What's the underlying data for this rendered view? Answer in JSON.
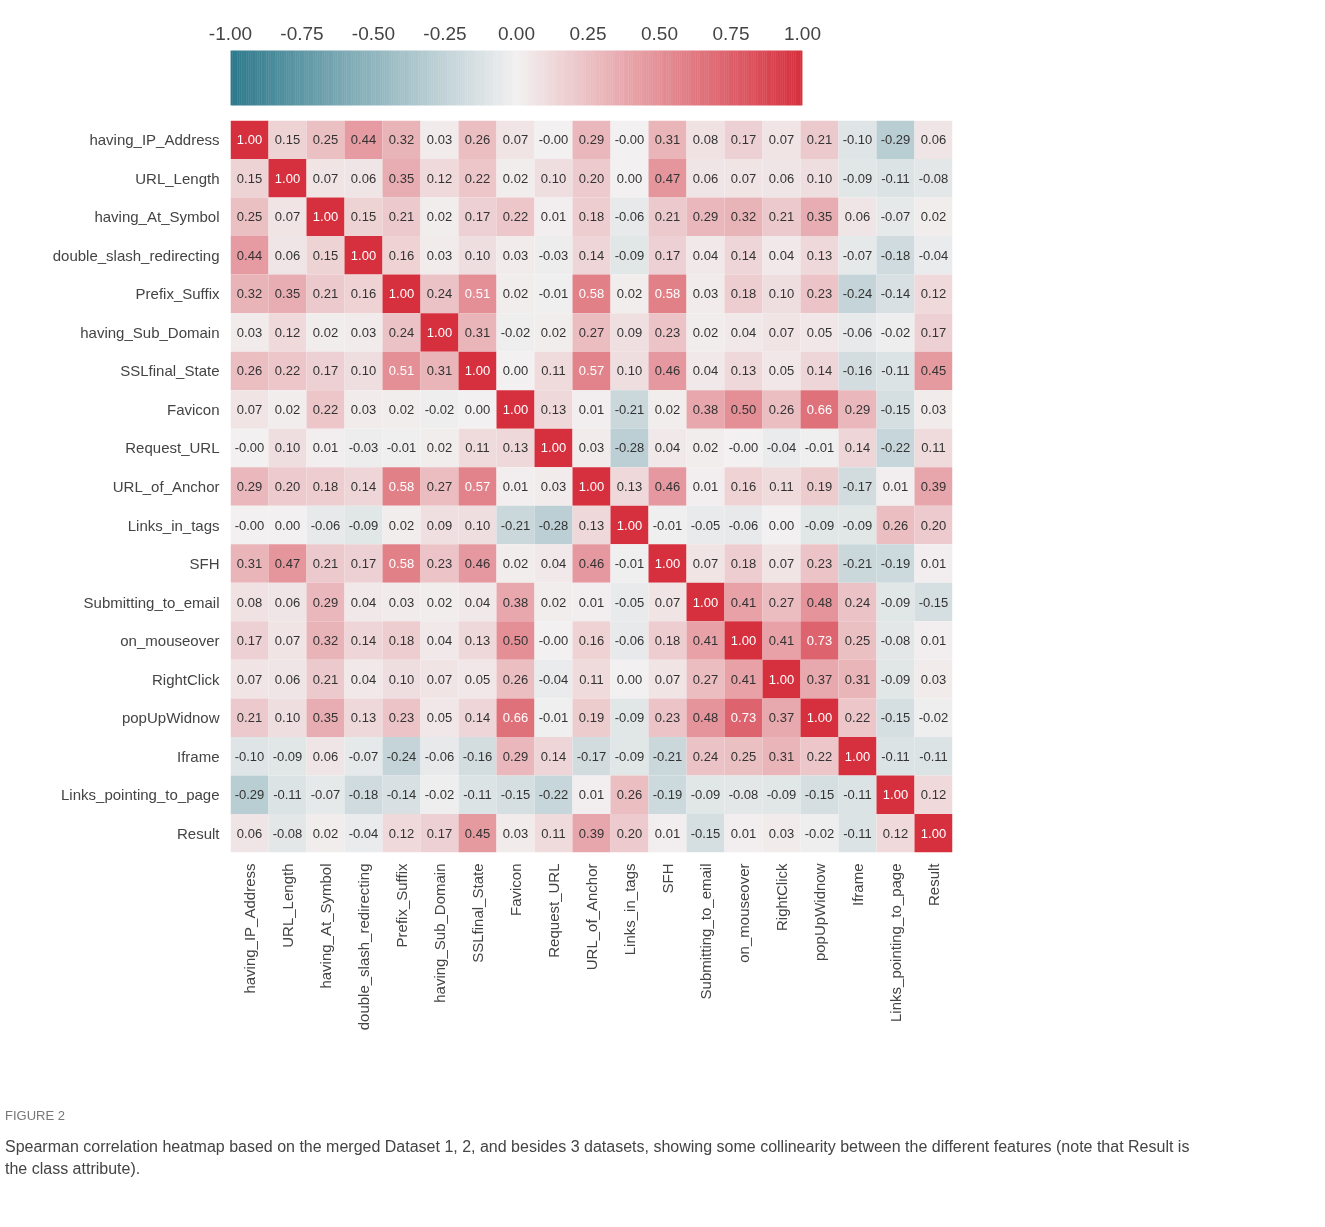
{
  "chart_data": {
    "type": "heatmap",
    "categories": [
      "having_IP_Address",
      "URL_Length",
      "having_At_Symbol",
      "double_slash_redirecting",
      "Prefix_Suffix",
      "having_Sub_Domain",
      "SSLfinal_State",
      "Favicon",
      "Request_URL",
      "URL_of_Anchor",
      "Links_in_tags",
      "SFH",
      "Submitting_to_email",
      "on_mouseover",
      "RightClick",
      "popUpWidnow",
      "Iframe",
      "Links_pointing_to_page",
      "Result"
    ],
    "y_categories": [
      "having_IP_Address",
      "URL_Length",
      "having_At_Symbol",
      "double_slash_redirecting",
      "Prefix_Suffix",
      "having_Sub_Domain",
      "SSLfinal_State",
      "Favicon",
      "Request_URL",
      "URL_of_Anchor",
      "Links_in_tags",
      "SFH",
      "Submitting_to_email",
      "on_mouseover",
      "RightClick",
      "popUpWidnow",
      "Iframe",
      "Links_pointing_to_page",
      "Result"
    ],
    "cells": [
      [
        1.0,
        0.15,
        0.25,
        0.44,
        0.32,
        0.03,
        0.26,
        0.07,
        -0.0,
        0.29,
        -0.0,
        0.31,
        0.08,
        0.17,
        0.07,
        0.21,
        -0.1,
        -0.29,
        0.06
      ],
      [
        0.15,
        1.0,
        0.07,
        0.06,
        0.35,
        0.12,
        0.22,
        0.02,
        0.1,
        0.2,
        0.0,
        0.47,
        0.06,
        0.07,
        0.06,
        0.1,
        -0.09,
        -0.11,
        -0.08
      ],
      [
        0.25,
        0.07,
        1.0,
        0.15,
        0.21,
        0.02,
        0.17,
        0.22,
        0.01,
        0.18,
        -0.06,
        0.21,
        0.29,
        0.32,
        0.21,
        0.35,
        0.06,
        -0.07,
        0.02
      ],
      [
        0.44,
        0.06,
        0.15,
        1.0,
        0.16,
        0.03,
        0.1,
        0.03,
        -0.03,
        0.14,
        -0.09,
        0.17,
        0.04,
        0.14,
        0.04,
        0.13,
        -0.07,
        -0.18,
        -0.04
      ],
      [
        0.32,
        0.35,
        0.21,
        0.16,
        1.0,
        0.24,
        0.51,
        0.02,
        -0.01,
        0.58,
        0.02,
        0.58,
        0.03,
        0.18,
        0.1,
        0.23,
        -0.24,
        -0.14,
        0.12
      ],
      [
        0.03,
        0.12,
        0.02,
        0.03,
        0.24,
        1.0,
        0.31,
        -0.02,
        0.02,
        0.27,
        0.09,
        0.23,
        0.02,
        0.04,
        0.07,
        0.05,
        -0.06,
        -0.02,
        0.17
      ],
      [
        0.26,
        0.22,
        0.17,
        0.1,
        0.51,
        0.31,
        1.0,
        0.0,
        0.11,
        0.57,
        0.1,
        0.46,
        0.04,
        0.13,
        0.05,
        0.14,
        -0.16,
        -0.11,
        0.45
      ],
      [
        0.07,
        0.02,
        0.22,
        0.03,
        0.02,
        -0.02,
        0.0,
        1.0,
        0.13,
        0.01,
        -0.21,
        0.02,
        0.38,
        0.5,
        0.26,
        0.66,
        0.29,
        -0.15,
        0.03
      ],
      [
        -0.0,
        0.1,
        0.01,
        -0.03,
        -0.01,
        0.02,
        0.11,
        0.13,
        1.0,
        0.03,
        -0.28,
        0.04,
        0.02,
        -0.0,
        -0.04,
        -0.01,
        0.14,
        -0.22,
        0.11
      ],
      [
        0.29,
        0.2,
        0.18,
        0.14,
        0.58,
        0.27,
        0.57,
        0.01,
        0.03,
        1.0,
        0.13,
        0.46,
        0.01,
        0.16,
        0.11,
        0.19,
        -0.17,
        0.01,
        0.39
      ],
      [
        -0.0,
        0.0,
        -0.06,
        -0.09,
        0.02,
        0.09,
        0.1,
        -0.21,
        -0.28,
        0.13,
        1.0,
        -0.01,
        -0.05,
        -0.06,
        0.0,
        -0.09,
        -0.09,
        0.26,
        0.2
      ],
      [
        0.31,
        0.47,
        0.21,
        0.17,
        0.58,
        0.23,
        0.46,
        0.02,
        0.04,
        0.46,
        -0.01,
        1.0,
        0.07,
        0.18,
        0.07,
        0.23,
        -0.21,
        -0.19,
        0.01
      ],
      [
        0.08,
        0.06,
        0.29,
        0.04,
        0.03,
        0.02,
        0.04,
        0.38,
        0.02,
        0.01,
        -0.05,
        0.07,
        1.0,
        0.41,
        0.27,
        0.48,
        0.24,
        -0.09,
        -0.15
      ],
      [
        0.17,
        0.07,
        0.32,
        0.14,
        0.18,
        0.04,
        0.13,
        0.5,
        -0.0,
        0.16,
        -0.06,
        0.18,
        0.41,
        1.0,
        0.41,
        0.73,
        0.25,
        -0.08,
        0.01
      ],
      [
        0.07,
        0.06,
        0.21,
        0.04,
        0.1,
        0.07,
        0.05,
        0.26,
        -0.04,
        0.11,
        0.0,
        0.07,
        0.27,
        0.41,
        1.0,
        0.37,
        0.31,
        -0.09,
        0.03
      ],
      [
        0.21,
        0.1,
        0.35,
        0.13,
        0.23,
        0.05,
        0.14,
        0.66,
        -0.01,
        0.19,
        -0.09,
        0.23,
        0.48,
        0.73,
        0.37,
        1.0,
        0.22,
        -0.15,
        -0.02
      ],
      [
        -0.1,
        -0.09,
        0.06,
        -0.07,
        -0.24,
        -0.06,
        -0.16,
        0.29,
        0.14,
        -0.17,
        -0.09,
        -0.21,
        0.24,
        0.25,
        0.31,
        0.22,
        1.0,
        -0.11,
        -0.11
      ],
      [
        -0.29,
        -0.11,
        -0.07,
        -0.18,
        -0.14,
        -0.02,
        -0.11,
        -0.15,
        -0.22,
        0.01,
        0.26,
        -0.19,
        -0.09,
        -0.08,
        -0.09,
        -0.15,
        -0.11,
        1.0,
        0.12
      ],
      [
        0.06,
        -0.08,
        0.02,
        -0.04,
        0.12,
        0.17,
        0.45,
        0.03,
        0.11,
        0.39,
        0.2,
        0.01,
        -0.15,
        0.01,
        0.03,
        -0.02,
        -0.11,
        0.12,
        1.0
      ]
    ],
    "clim": [
      -1,
      1
    ],
    "cticks": [
      {
        "value": -1,
        "label": "-1.00"
      },
      {
        "value": -0.75,
        "label": "-0.75"
      },
      {
        "value": -0.5,
        "label": "-0.50"
      },
      {
        "value": -0.25,
        "label": "-0.25"
      },
      {
        "value": 0,
        "label": "0.00"
      },
      {
        "value": 0.25,
        "label": "0.25"
      },
      {
        "value": 0.5,
        "label": "0.50"
      },
      {
        "value": 0.75,
        "label": "0.75"
      },
      {
        "value": 1,
        "label": "1.00"
      }
    ],
    "cell_labels": [
      [
        "1.00",
        "0.15",
        "0.25",
        "0.44",
        "0.32",
        "0.03",
        "0.26",
        "0.07",
        "-0.00",
        "0.29",
        "-0.00",
        "0.31",
        "0.08",
        "0.17",
        "0.07",
        "0.21",
        "-0.10",
        "-0.29",
        "0.06"
      ],
      [
        "0.15",
        "1.00",
        "0.07",
        "0.06",
        "0.35",
        "0.12",
        "0.22",
        "0.02",
        "0.10",
        "0.20",
        "0.00",
        "0.47",
        "0.06",
        "0.07",
        "0.06",
        "0.10",
        "-0.09",
        "-0.11",
        "-0.08"
      ],
      [
        "0.25",
        "0.07",
        "1.00",
        "0.15",
        "0.21",
        "0.02",
        "0.17",
        "0.22",
        "0.01",
        "0.18",
        "-0.06",
        "0.21",
        "0.29",
        "0.32",
        "0.21",
        "0.35",
        "0.06",
        "-0.07",
        "0.02"
      ],
      [
        "0.44",
        "0.06",
        "0.15",
        "1.00",
        "0.16",
        "0.03",
        "0.10",
        "0.03",
        "-0.03",
        "0.14",
        "-0.09",
        "0.17",
        "0.04",
        "0.14",
        "0.04",
        "0.13",
        "-0.07",
        "-0.18",
        "-0.04"
      ],
      [
        "0.32",
        "0.35",
        "0.21",
        "0.16",
        "1.00",
        "0.24",
        "0.51",
        "0.02",
        "-0.01",
        "0.58",
        "0.02",
        "0.58",
        "0.03",
        "0.18",
        "0.10",
        "0.23",
        "-0.24",
        "-0.14",
        "0.12"
      ],
      [
        "0.03",
        "0.12",
        "0.02",
        "0.03",
        "0.24",
        "1.00",
        "0.31",
        "-0.02",
        "0.02",
        "0.27",
        "0.09",
        "0.23",
        "0.02",
        "0.04",
        "0.07",
        "0.05",
        "-0.06",
        "-0.02",
        "0.17"
      ],
      [
        "0.26",
        "0.22",
        "0.17",
        "0.10",
        "0.51",
        "0.31",
        "1.00",
        "0.00",
        "0.11",
        "0.57",
        "0.10",
        "0.46",
        "0.04",
        "0.13",
        "0.05",
        "0.14",
        "-0.16",
        "-0.11",
        "0.45"
      ],
      [
        "0.07",
        "0.02",
        "0.22",
        "0.03",
        "0.02",
        "-0.02",
        "0.00",
        "1.00",
        "0.13",
        "0.01",
        "-0.21",
        "0.02",
        "0.38",
        "0.50",
        "0.26",
        "0.66",
        "0.29",
        "-0.15",
        "0.03"
      ],
      [
        "-0.00",
        "0.10",
        "0.01",
        "-0.03",
        "-0.01",
        "0.02",
        "0.11",
        "0.13",
        "1.00",
        "0.03",
        "-0.28",
        "0.04",
        "0.02",
        "-0.00",
        "-0.04",
        "-0.01",
        "0.14",
        "-0.22",
        "0.11"
      ],
      [
        "0.29",
        "0.20",
        "0.18",
        "0.14",
        "0.58",
        "0.27",
        "0.57",
        "0.01",
        "0.03",
        "1.00",
        "0.13",
        "0.46",
        "0.01",
        "0.16",
        "0.11",
        "0.19",
        "-0.17",
        "0.01",
        "0.39"
      ],
      [
        "-0.00",
        "0.00",
        "-0.06",
        "-0.09",
        "0.02",
        "0.09",
        "0.10",
        "-0.21",
        "-0.28",
        "0.13",
        "1.00",
        "-0.01",
        "-0.05",
        "-0.06",
        "0.00",
        "-0.09",
        "-0.09",
        "0.26",
        "0.20"
      ],
      [
        "0.31",
        "0.47",
        "0.21",
        "0.17",
        "0.58",
        "0.23",
        "0.46",
        "0.02",
        "0.04",
        "0.46",
        "-0.01",
        "1.00",
        "0.07",
        "0.18",
        "0.07",
        "0.23",
        "-0.21",
        "-0.19",
        "0.01"
      ],
      [
        "0.08",
        "0.06",
        "0.29",
        "0.04",
        "0.03",
        "0.02",
        "0.04",
        "0.38",
        "0.02",
        "0.01",
        "-0.05",
        "0.07",
        "1.00",
        "0.41",
        "0.27",
        "0.48",
        "0.24",
        "-0.09",
        "-0.15"
      ],
      [
        "0.17",
        "0.07",
        "0.32",
        "0.14",
        "0.18",
        "0.04",
        "0.13",
        "0.50",
        "-0.00",
        "0.16",
        "-0.06",
        "0.18",
        "0.41",
        "1.00",
        "0.41",
        "0.73",
        "0.25",
        "-0.08",
        "0.01"
      ],
      [
        "0.07",
        "0.06",
        "0.21",
        "0.04",
        "0.10",
        "0.07",
        "0.05",
        "0.26",
        "-0.04",
        "0.11",
        "0.00",
        "0.07",
        "0.27",
        "0.41",
        "1.00",
        "0.37",
        "0.31",
        "-0.09",
        "0.03"
      ],
      [
        "0.21",
        "0.10",
        "0.35",
        "0.13",
        "0.23",
        "0.05",
        "0.14",
        "0.66",
        "-0.01",
        "0.19",
        "-0.09",
        "0.23",
        "0.48",
        "0.73",
        "0.37",
        "1.00",
        "0.22",
        "-0.15",
        "-0.02"
      ],
      [
        "-0.10",
        "-0.09",
        "0.06",
        "-0.07",
        "-0.24",
        "-0.06",
        "-0.16",
        "0.29",
        "0.14",
        "-0.17",
        "-0.09",
        "-0.21",
        "0.24",
        "0.25",
        "0.31",
        "0.22",
        "1.00",
        "-0.11",
        "-0.11"
      ],
      [
        "-0.29",
        "-0.11",
        "-0.07",
        "-0.18",
        "-0.14",
        "-0.02",
        "-0.11",
        "-0.15",
        "-0.22",
        "0.01",
        "0.26",
        "-0.19",
        "-0.09",
        "-0.08",
        "-0.09",
        "-0.15",
        "-0.11",
        "1.00",
        "0.12"
      ],
      [
        "0.06",
        "-0.08",
        "0.02",
        "-0.04",
        "0.12",
        "0.17",
        "0.45",
        "0.03",
        "0.11",
        "0.39",
        "0.20",
        "0.01",
        "-0.15",
        "0.01",
        "0.03",
        "-0.02",
        "-0.11",
        "0.12",
        "1.00"
      ]
    ],
    "annotations": [
      "FIGURE 2",
      "Spearman correlation heatmap based on the merged Dataset 1, 2, and besides 3 datasets, showing some collinearity between the different features (note that Result is the class attribute)."
    ]
  }
}
